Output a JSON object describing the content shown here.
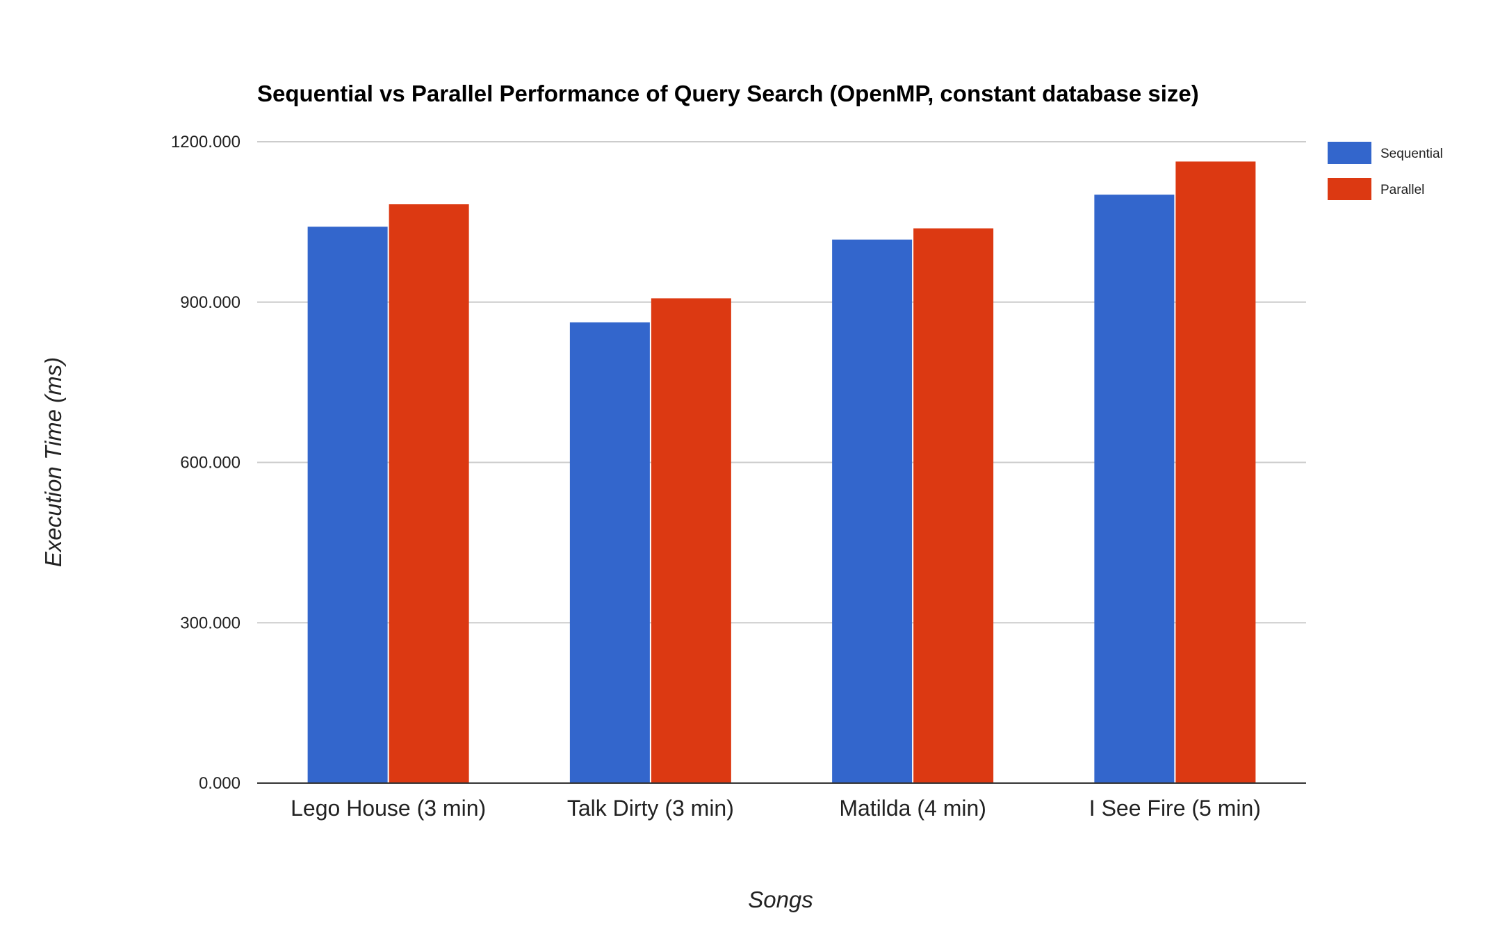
{
  "chart_data": {
    "type": "bar",
    "title": "Sequential vs Parallel Performance of Query Search (OpenMP, constant database size)",
    "xlabel": "Songs",
    "ylabel": "Execution Time (ms)",
    "categories": [
      "Lego House (3 min)",
      "Talk Dirty (3 min)",
      "Matilda (4 min)",
      "I See Fire (5 min)"
    ],
    "series": [
      {
        "name": "Sequential",
        "color": "#3366cc",
        "values": [
          1041,
          862,
          1017,
          1101
        ]
      },
      {
        "name": "Parallel",
        "color": "#dc3912",
        "values": [
          1083,
          907,
          1038,
          1163
        ]
      }
    ],
    "ylim": [
      0,
      1200
    ],
    "yticks": [
      0,
      300,
      600,
      900,
      1200
    ],
    "ytick_labels": [
      "0.000",
      "300.000",
      "600.000",
      "900.000",
      "1200.000"
    ],
    "grid": true,
    "legend_position": "top-right"
  }
}
